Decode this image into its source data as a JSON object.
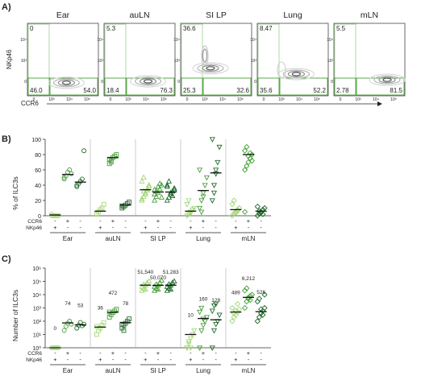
{
  "colors": {
    "nk_pos": "#a3d77a",
    "double_neg": "#49a13c",
    "ccr6_pos": "#1f6b2a",
    "gate": "#5aa848"
  },
  "panelA": {
    "label": "A)",
    "ylabel": "NKp46",
    "xlabel": "CCR6",
    "plots": [
      {
        "tissue": "Ear",
        "ul": "0",
        "ll": "46.0",
        "lr": "54.0"
      },
      {
        "tissue": "auLN",
        "ul": "5.3",
        "ll": "18.4",
        "lr": "76.3"
      },
      {
        "tissue": "SI LP",
        "ul": "36.6",
        "ll": "25.3",
        "lr": "32.6"
      },
      {
        "tissue": "Lung",
        "ul": "8.47",
        "ll": "35.6",
        "lr": "52.2"
      },
      {
        "tissue": "mLN",
        "ul": "5.5",
        "ll": "2.78",
        "lr": "81.5"
      }
    ]
  },
  "panelB": {
    "label": "B)",
    "chart_data": {
      "type": "scatter",
      "ylabel": "% of ILC3s",
      "ylim": [
        0,
        100
      ],
      "yticks": [
        "0",
        "20",
        "40",
        "60",
        "80",
        "100"
      ],
      "groups": [
        "Ear",
        "auLN",
        "SI LP",
        "Lung",
        "mLN"
      ],
      "row_labels": [
        "CCR6",
        "NKp46"
      ],
      "subsets": [
        {
          "ccr6": "-",
          "nkp46": "+",
          "marker": "circle-open",
          "color": "#a3d77a"
        },
        {
          "ccr6": "+",
          "nkp46": "-",
          "marker": "circle-open",
          "color": "#49a13c"
        },
        {
          "ccr6": "-",
          "nkp46": "-",
          "marker": "circle-open",
          "color": "#1f6b2a"
        }
      ],
      "series": [
        {
          "group": "Ear",
          "values": [
            [
              0,
              0,
              0,
              0,
              0,
              2,
              0
            ],
            [
              48,
              52,
              57,
              60,
              55,
              50
            ],
            [
              38,
              42,
              45,
              48,
              85,
              40
            ]
          ],
          "means": [
            1,
            54,
            44
          ]
        },
        {
          "group": "auLN",
          "values": [
            [
              2,
              5,
              8,
              10,
              15,
              3
            ],
            [
              68,
              72,
              76,
              78,
              80,
              74,
              70
            ],
            [
              10,
              12,
              14,
              16,
              18,
              13
            ]
          ],
          "means": [
            6,
            76,
            14
          ]
        },
        {
          "group": "SI LP",
          "values": [
            [
              20,
              25,
              30,
              35,
              40,
              45,
              50,
              28,
              33,
              38,
              22,
              32
            ],
            [
              20,
              25,
              30,
              35,
              40,
              28,
              32,
              38,
              42,
              24,
              34
            ],
            [
              20,
              24,
              28,
              32,
              36,
              40,
              45,
              30,
              26,
              34,
              38
            ]
          ],
          "means": [
            34,
            31,
            31
          ]
        },
        {
          "group": "Lung",
          "values": [
            [
              0,
              2,
              5,
              8,
              10,
              15,
              20,
              3
            ],
            [
              10,
              20,
              30,
              40,
              50,
              60,
              5,
              25
            ],
            [
              20,
              40,
              55,
              70,
              90,
              100,
              30,
              60
            ]
          ],
          "means": [
            6,
            33,
            56
          ]
        },
        {
          "group": "mLN",
          "values": [
            [
              0,
              3,
              5,
              8,
              10,
              15,
              20,
              4,
              6
            ],
            [
              60,
              65,
              70,
              75,
              80,
              85,
              90,
              78,
              82,
              72,
              5
            ],
            [
              0,
              3,
              5,
              8,
              10,
              12,
              6,
              4,
              2
            ]
          ],
          "means": [
            8,
            80,
            6
          ]
        }
      ]
    }
  },
  "panelC": {
    "label": "C)",
    "chart_data": {
      "type": "scatter",
      "ylabel": "Number of ILC3s",
      "yscale": "log",
      "ylim": [
        1,
        1000000
      ],
      "yticks": [
        "10⁰",
        "10¹",
        "10²",
        "10³",
        "10⁴",
        "10⁵",
        "10⁶"
      ],
      "groups": [
        "Ear",
        "auLN",
        "SI LP",
        "Lung",
        "mLN"
      ],
      "row_labels": [
        "CCR6",
        "NKp46"
      ],
      "subsets": [
        {
          "ccr6": "-",
          "nkp46": "+"
        },
        {
          "ccr6": "+",
          "nkp46": "-"
        },
        {
          "ccr6": "-",
          "nkp46": "-"
        }
      ],
      "series": [
        {
          "group": "Ear",
          "labels": [
            "0",
            "74",
            "53"
          ],
          "means": [
            1,
            74,
            53
          ],
          "values": [
            [
              1,
              1,
              1,
              1,
              1
            ],
            [
              20,
              40,
              70,
              100,
              60
            ],
            [
              30,
              50,
              80,
              45,
              60
            ]
          ]
        },
        {
          "group": "auLN",
          "labels": [
            "36",
            "472",
            "78"
          ],
          "means": [
            36,
            472,
            78
          ],
          "values": [
            [
              10,
              20,
              30,
              50,
              80,
              40
            ],
            [
              200,
              300,
              450,
              600,
              800,
              500
            ],
            [
              30,
              50,
              70,
              100,
              150,
              60,
              20
            ]
          ]
        },
        {
          "group": "SI LP",
          "labels": [
            "51,540",
            "50,070",
            "51,283"
          ],
          "means": [
            51540,
            50070,
            51283
          ],
          "values": [
            [
              20000,
              30000,
              50000,
              80000,
              100000,
              40000,
              60000,
              25000
            ],
            [
              20000,
              30000,
              50000,
              80000,
              120000,
              40000,
              60000,
              25000
            ],
            [
              20000,
              30000,
              50000,
              80000,
              100000,
              40000,
              60000,
              25000
            ]
          ]
        },
        {
          "group": "Lung",
          "labels": [
            "10",
            "160",
            "128"
          ],
          "means": [
            10,
            160,
            128
          ],
          "values": [
            [
              1,
              2,
              5,
              10,
              20,
              1,
              3,
              1
            ],
            [
              1,
              20,
              50,
              100,
              200,
              500,
              1000,
              150
            ],
            [
              1,
              20,
              60,
              100,
              300,
              600,
              1500,
              2000
            ]
          ]
        },
        {
          "group": "mLN",
          "labels": [
            "489",
            "6,212",
            "526"
          ],
          "means": [
            489,
            6212,
            526
          ],
          "values": [
            [
              100,
              200,
              300,
              500,
              800,
              1000,
              400,
              600,
              2000
            ],
            [
              1000,
              3000,
              5000,
              8000,
              10000,
              20000,
              30000,
              6000,
              4000
            ],
            [
              100,
              200,
              400,
              600,
              1000,
              3000,
              5000,
              800,
              300,
              10000
            ]
          ]
        }
      ]
    }
  }
}
